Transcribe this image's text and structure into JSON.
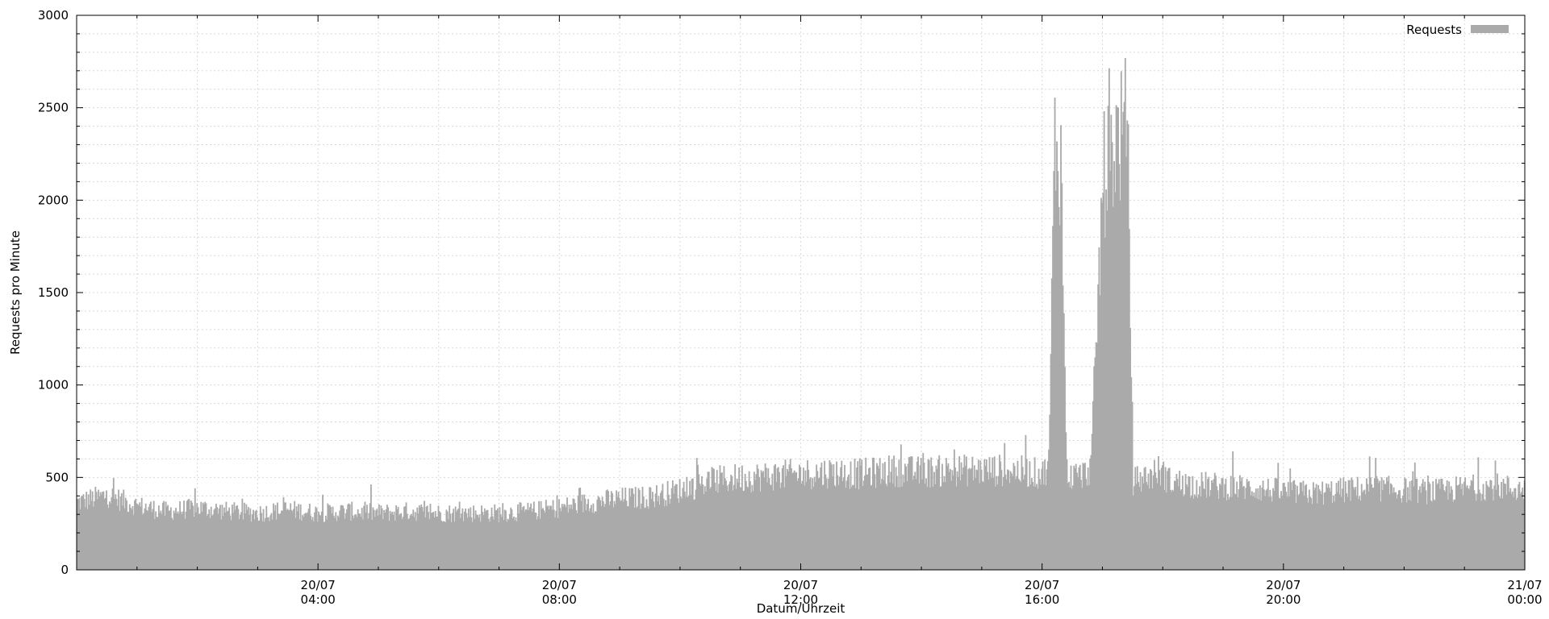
{
  "chart_data": {
    "type": "area",
    "title": "",
    "xlabel": "Datum/Uhrzeit",
    "ylabel": "Requests pro Minute",
    "ylim": [
      0,
      3000
    ],
    "yticks": [
      0,
      500,
      1000,
      1500,
      2000,
      2500,
      3000
    ],
    "xlim": [
      "2023-07-20 00:00",
      "2023-07-21 00:00"
    ],
    "xticks": [
      {
        "date": "20/07",
        "time": "04:00"
      },
      {
        "date": "20/07",
        "time": "08:00"
      },
      {
        "date": "20/07",
        "time": "12:00"
      },
      {
        "date": "20/07",
        "time": "16:00"
      },
      {
        "date": "20/07",
        "time": "20:00"
      },
      {
        "date": "21/07",
        "time": "00:00"
      }
    ],
    "grid": true,
    "legend_position": "top-right",
    "series": [
      {
        "name": "Requests",
        "color": "#aaaaaa",
        "x_hours": [
          0,
          0.5,
          1,
          1.5,
          2,
          2.5,
          3,
          3.5,
          4,
          4.5,
          5,
          5.5,
          6,
          6.5,
          7,
          7.5,
          8,
          8.5,
          9,
          9.5,
          10,
          10.5,
          11,
          11.5,
          12,
          12.5,
          13,
          13.5,
          14,
          14.5,
          15,
          15.5,
          16,
          16.1,
          16.2,
          16.3,
          16.4,
          16.5,
          16.6,
          16.7,
          16.8,
          17,
          17.2,
          17.4,
          17.5,
          17.6,
          17.7,
          17.8,
          17.9,
          18,
          18.1,
          18.5,
          19,
          19.5,
          20,
          20.5,
          21,
          21.5,
          22,
          22.5,
          23,
          23.5,
          24
        ],
        "values": [
          380,
          420,
          360,
          330,
          350,
          330,
          320,
          340,
          320,
          330,
          320,
          330,
          320,
          320,
          320,
          330,
          350,
          380,
          400,
          410,
          450,
          500,
          520,
          530,
          540,
          550,
          540,
          560,
          550,
          560,
          560,
          560,
          540,
          600,
          2400,
          2300,
          550,
          520,
          530,
          540,
          580,
          2200,
          2400,
          2500,
          500,
          510,
          520,
          530,
          560,
          540,
          500,
          480,
          470,
          460,
          440,
          430,
          450,
          460,
          450,
          440,
          460,
          470,
          450
        ]
      }
    ]
  }
}
